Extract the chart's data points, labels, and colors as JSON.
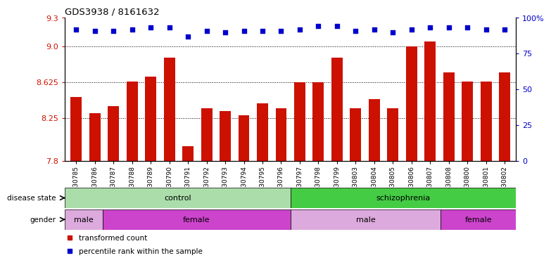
{
  "title": "GDS3938 / 8161632",
  "samples": [
    "GSM630785",
    "GSM630786",
    "GSM630787",
    "GSM630788",
    "GSM630789",
    "GSM630790",
    "GSM630791",
    "GSM630792",
    "GSM630793",
    "GSM630794",
    "GSM630795",
    "GSM630796",
    "GSM630797",
    "GSM630798",
    "GSM630799",
    "GSM630803",
    "GSM630804",
    "GSM630805",
    "GSM630806",
    "GSM630807",
    "GSM630808",
    "GSM630800",
    "GSM630801",
    "GSM630802"
  ],
  "bar_values": [
    8.47,
    8.3,
    8.37,
    8.63,
    8.68,
    8.88,
    7.95,
    8.35,
    8.32,
    8.28,
    8.4,
    8.35,
    8.625,
    8.625,
    8.88,
    8.35,
    8.45,
    8.35,
    9.0,
    9.05,
    8.73,
    8.63,
    8.63,
    8.73
  ],
  "percentile_right": [
    92,
    91,
    91,
    92,
    93,
    93,
    87,
    91,
    90,
    91,
    91,
    91,
    92,
    94,
    94,
    91,
    92,
    90,
    92,
    93,
    93,
    93,
    92,
    92
  ],
  "ylim_left": [
    7.8,
    9.3
  ],
  "ylim_right": [
    0,
    100
  ],
  "yticks_left": [
    7.8,
    8.25,
    8.625,
    9.0,
    9.3
  ],
  "yticks_right": [
    0,
    25,
    50,
    75,
    100
  ],
  "bar_color": "#cc1100",
  "dot_color": "#0000cc",
  "grid_values": [
    9.0,
    8.625,
    8.25
  ],
  "disease_control_range": [
    0,
    12
  ],
  "disease_schizo_range": [
    12,
    24
  ],
  "disease_control_color": "#aaddaa",
  "disease_schizo_color": "#44cc44",
  "gender_groups": [
    {
      "label": "male",
      "start": 0,
      "end": 2,
      "color": "#ddaadd"
    },
    {
      "label": "female",
      "start": 2,
      "end": 12,
      "color": "#cc44cc"
    },
    {
      "label": "male",
      "start": 12,
      "end": 20,
      "color": "#ddaadd"
    },
    {
      "label": "female",
      "start": 20,
      "end": 24,
      "color": "#cc44cc"
    }
  ],
  "bg_color": "#ffffff",
  "plot_bg": "#ffffff"
}
